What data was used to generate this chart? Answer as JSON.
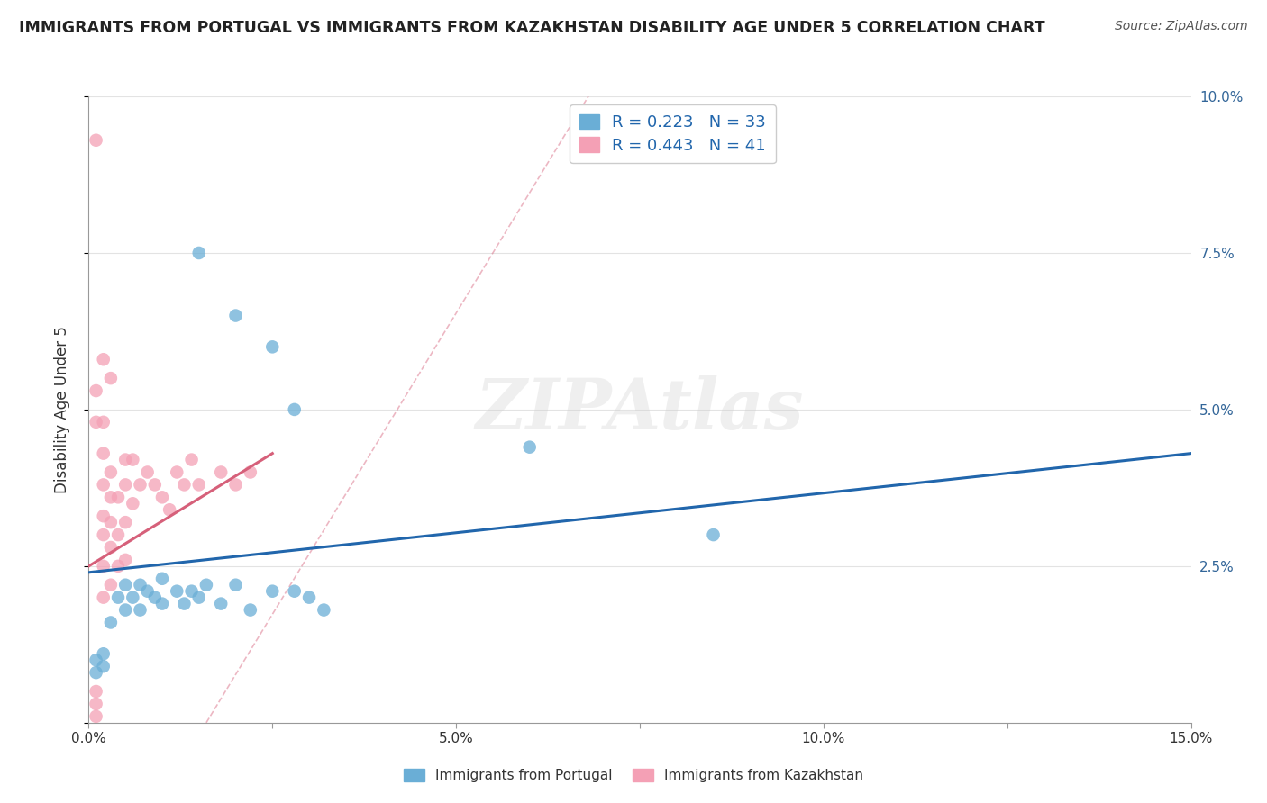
{
  "title": "IMMIGRANTS FROM PORTUGAL VS IMMIGRANTS FROM KAZAKHSTAN DISABILITY AGE UNDER 5 CORRELATION CHART",
  "source": "Source: ZipAtlas.com",
  "ylabel": "Disability Age Under 5",
  "xlim": [
    0,
    0.15
  ],
  "ylim": [
    0,
    0.1
  ],
  "xticks": [
    0.0,
    0.025,
    0.05,
    0.075,
    0.1,
    0.125,
    0.15
  ],
  "xticklabels": [
    "0.0%",
    "",
    "5.0%",
    "",
    "10.0%",
    "",
    "15.0%"
  ],
  "yticks_right": [
    0.0,
    0.025,
    0.05,
    0.075,
    0.1
  ],
  "ytick_right_labels": [
    "",
    "2.5%",
    "5.0%",
    "7.5%",
    "10.0%"
  ],
  "legend_blue_label": "Immigrants from Portugal",
  "legend_pink_label": "Immigrants from Kazakhstan",
  "R_blue": 0.223,
  "N_blue": 33,
  "R_pink": 0.443,
  "N_pink": 41,
  "blue_color": "#6aaed6",
  "pink_color": "#f4a0b5",
  "blue_line_color": "#2166ac",
  "pink_line_color": "#d6607a",
  "blue_scatter": [
    [
      0.001,
      0.008
    ],
    [
      0.001,
      0.01
    ],
    [
      0.002,
      0.009
    ],
    [
      0.002,
      0.011
    ],
    [
      0.003,
      0.016
    ],
    [
      0.004,
      0.02
    ],
    [
      0.005,
      0.022
    ],
    [
      0.005,
      0.018
    ],
    [
      0.006,
      0.02
    ],
    [
      0.007,
      0.022
    ],
    [
      0.007,
      0.018
    ],
    [
      0.008,
      0.021
    ],
    [
      0.009,
      0.02
    ],
    [
      0.01,
      0.019
    ],
    [
      0.01,
      0.023
    ],
    [
      0.012,
      0.021
    ],
    [
      0.013,
      0.019
    ],
    [
      0.014,
      0.021
    ],
    [
      0.015,
      0.02
    ],
    [
      0.016,
      0.022
    ],
    [
      0.018,
      0.019
    ],
    [
      0.02,
      0.022
    ],
    [
      0.022,
      0.018
    ],
    [
      0.025,
      0.021
    ],
    [
      0.028,
      0.021
    ],
    [
      0.03,
      0.02
    ],
    [
      0.032,
      0.018
    ],
    [
      0.015,
      0.075
    ],
    [
      0.02,
      0.065
    ],
    [
      0.025,
      0.06
    ],
    [
      0.028,
      0.05
    ],
    [
      0.06,
      0.044
    ],
    [
      0.085,
      0.03
    ]
  ],
  "pink_scatter": [
    [
      0.001,
      0.001
    ],
    [
      0.001,
      0.003
    ],
    [
      0.001,
      0.005
    ],
    [
      0.002,
      0.02
    ],
    [
      0.002,
      0.025
    ],
    [
      0.002,
      0.03
    ],
    [
      0.002,
      0.033
    ],
    [
      0.002,
      0.038
    ],
    [
      0.002,
      0.043
    ],
    [
      0.003,
      0.022
    ],
    [
      0.003,
      0.028
    ],
    [
      0.003,
      0.032
    ],
    [
      0.003,
      0.036
    ],
    [
      0.003,
      0.04
    ],
    [
      0.004,
      0.025
    ],
    [
      0.004,
      0.03
    ],
    [
      0.004,
      0.036
    ],
    [
      0.005,
      0.026
    ],
    [
      0.005,
      0.032
    ],
    [
      0.005,
      0.038
    ],
    [
      0.005,
      0.042
    ],
    [
      0.006,
      0.035
    ],
    [
      0.006,
      0.042
    ],
    [
      0.007,
      0.038
    ],
    [
      0.008,
      0.04
    ],
    [
      0.009,
      0.038
    ],
    [
      0.01,
      0.036
    ],
    [
      0.011,
      0.034
    ],
    [
      0.012,
      0.04
    ],
    [
      0.013,
      0.038
    ],
    [
      0.014,
      0.042
    ],
    [
      0.015,
      0.038
    ],
    [
      0.018,
      0.04
    ],
    [
      0.02,
      0.038
    ],
    [
      0.022,
      0.04
    ],
    [
      0.001,
      0.048
    ],
    [
      0.001,
      0.053
    ],
    [
      0.002,
      0.048
    ],
    [
      0.001,
      0.093
    ],
    [
      0.002,
      0.058
    ],
    [
      0.003,
      0.055
    ]
  ],
  "background_color": "#ffffff",
  "grid_color": "#e0e0e0",
  "watermark": "ZIPAtlas",
  "watermark_color": "#cccccc"
}
